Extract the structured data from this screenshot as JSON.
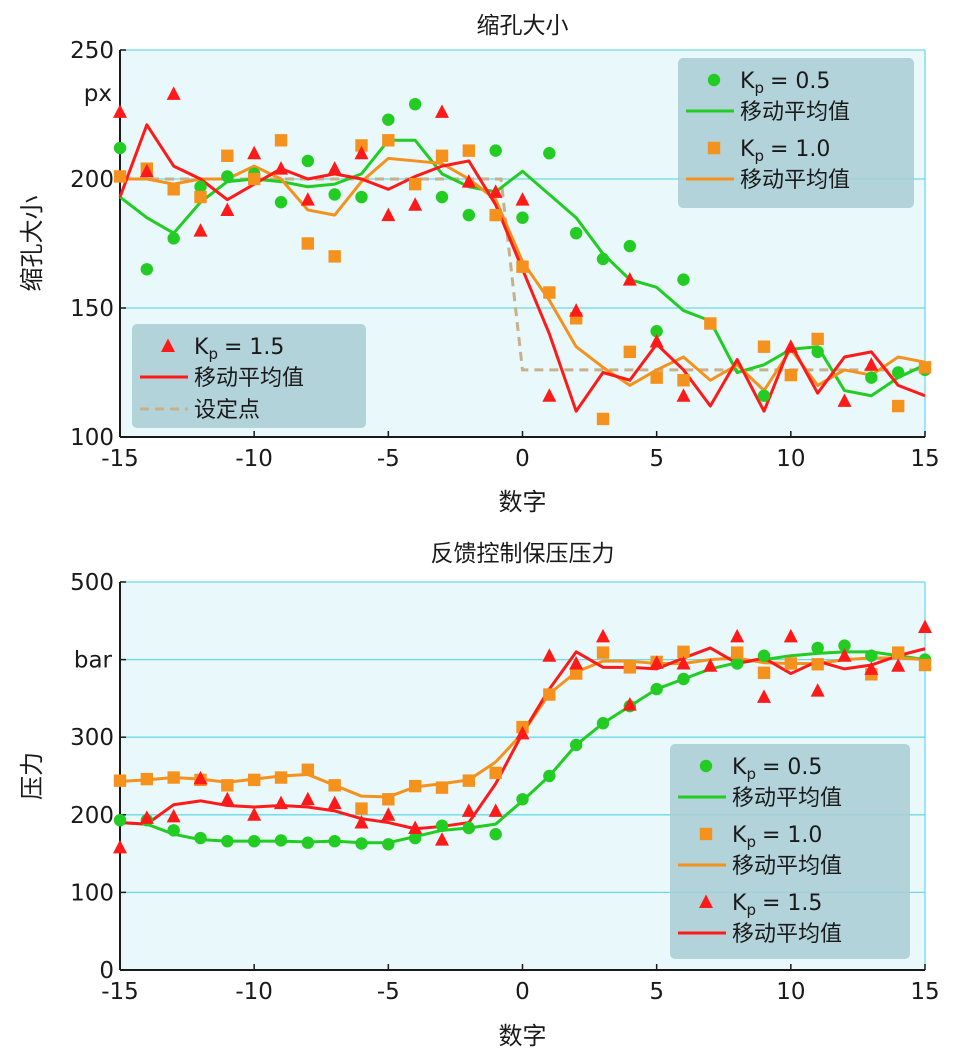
{
  "chart_data": [
    {
      "type": "scatter",
      "title": "缩孔大小",
      "xlabel": "数字",
      "ylabel": "缩孔大小",
      "unit_label": "px",
      "xlim": [
        -15,
        15
      ],
      "ylim": [
        100,
        250
      ],
      "xticks": [
        "-15",
        "-10",
        "-5",
        "0",
        "5",
        "10",
        "15"
      ],
      "yticks": [
        "100",
        "150",
        "200",
        "250"
      ],
      "x": [
        -15,
        -14,
        -13,
        -12,
        -11,
        -10,
        -9,
        -8,
        -7,
        -6,
        -5,
        -4,
        -3,
        -2,
        -1,
        0,
        1,
        2,
        3,
        4,
        5,
        6,
        7,
        8,
        9,
        10,
        11,
        12,
        13,
        14,
        15
      ],
      "series": [
        {
          "name": "Kp = 0.5",
          "legend_label": "K",
          "legend_sub": "p",
          "legend_value": "= 0.5",
          "marker": "circle",
          "color": "#22cc22",
          "points": [
            212,
            165,
            177,
            197,
            201,
            202,
            191,
            207,
            194,
            193,
            223,
            229,
            193,
            186,
            211,
            185,
            210,
            179,
            169,
            174,
            141,
            161,
            null,
            null,
            116,
            null,
            133,
            null,
            123,
            125,
            126
          ],
          "avg": [
            193,
            185,
            179,
            191,
            199,
            200,
            199,
            197,
            198,
            202,
            215,
            215,
            202,
            197,
            195,
            203,
            194,
            185,
            171,
            161,
            158,
            149,
            145,
            125,
            128,
            134,
            135,
            118,
            116,
            123,
            128
          ]
        },
        {
          "name": "Kp = 1.0",
          "legend_label": "K",
          "legend_sub": "p",
          "legend_value": "= 1.0",
          "marker": "square",
          "color": "#f5921e",
          "points": [
            201,
            204,
            196,
            193,
            209,
            200,
            215,
            175,
            170,
            213,
            215,
            198,
            209,
            211,
            186,
            166,
            156,
            146,
            107,
            133,
            123,
            122,
            144,
            null,
            135,
            124,
            138,
            null,
            null,
            112,
            127
          ],
          "avg": [
            200,
            200,
            198,
            200,
            200,
            205,
            200,
            188,
            186,
            199,
            208,
            207,
            206,
            200,
            192,
            168,
            153,
            135,
            127,
            120,
            126,
            131,
            122,
            128,
            118,
            134,
            120,
            126,
            124,
            131,
            129
          ]
        },
        {
          "name": "Kp = 1.5",
          "legend_label": "K",
          "legend_sub": "p",
          "legend_value": "= 1.5",
          "marker": "triangle",
          "color": "#ff1a1a",
          "points": [
            226,
            203,
            233,
            180,
            188,
            210,
            204,
            192,
            204,
            210,
            186,
            190,
            226,
            199,
            195,
            192,
            116,
            149,
            null,
            161,
            137,
            116,
            null,
            null,
            null,
            135,
            null,
            114,
            128,
            null,
            null
          ],
          "avg": [
            193,
            221,
            205,
            200,
            192,
            198,
            204,
            200,
            202,
            200,
            196,
            201,
            205,
            207,
            190,
            165,
            140,
            110,
            125,
            122,
            136,
            126,
            112,
            130,
            110,
            136,
            117,
            131,
            133,
            120,
            116
          ]
        }
      ],
      "setpoint": {
        "name": "设定点",
        "color": "#c8b08a",
        "x": [
          -15,
          -0.8,
          0,
          15
        ],
        "y": [
          200,
          200,
          126,
          126
        ]
      },
      "legend_line_label": "移动平均值"
    },
    {
      "type": "scatter",
      "title": "反馈控制保压压力",
      "xlabel": "数字",
      "ylabel": "压力",
      "unit_label": "bar",
      "xlim": [
        -15,
        15
      ],
      "ylim": [
        0,
        500
      ],
      "xticks": [
        "-15",
        "-10",
        "-5",
        "0",
        "5",
        "10",
        "15"
      ],
      "yticks": [
        "0",
        "100",
        "200",
        "300",
        "500"
      ],
      "x": [
        -15,
        -14,
        -13,
        -12,
        -11,
        -10,
        -9,
        -8,
        -7,
        -6,
        -5,
        -4,
        -3,
        -2,
        -1,
        0,
        1,
        2,
        3,
        4,
        5,
        6,
        7,
        8,
        9,
        10,
        11,
        12,
        13,
        14,
        15
      ],
      "series": [
        {
          "name": "Kp = 0.5",
          "legend_label": "K",
          "legend_sub": "p",
          "legend_value": "= 0.5",
          "marker": "circle",
          "color": "#22cc22",
          "points": [
            193,
            193,
            180,
            170,
            166,
            166,
            167,
            164,
            166,
            163,
            162,
            170,
            186,
            183,
            175,
            220,
            250,
            290,
            318,
            340,
            362,
            375,
            null,
            395,
            405,
            null,
            415,
            418,
            405,
            null,
            400
          ],
          "avg": [
            190,
            188,
            175,
            168,
            166,
            166,
            166,
            165,
            166,
            164,
            164,
            172,
            180,
            183,
            188,
            218,
            250,
            290,
            318,
            340,
            362,
            375,
            388,
            396,
            400,
            405,
            408,
            410,
            410,
            405,
            400
          ]
        },
        {
          "name": "Kp = 1.0",
          "legend_label": "K",
          "legend_sub": "p",
          "legend_value": "= 1.0",
          "marker": "square",
          "color": "#f5921e",
          "points": [
            244,
            246,
            248,
            245,
            238,
            245,
            248,
            258,
            238,
            208,
            220,
            237,
            235,
            244,
            254,
            313,
            355,
            382,
            409,
            390,
            397,
            410,
            null,
            409,
            383,
            395,
            394,
            null,
            381,
            409,
            393
          ],
          "avg": [
            243,
            245,
            248,
            246,
            242,
            246,
            250,
            252,
            238,
            224,
            223,
            236,
            240,
            245,
            268,
            305,
            356,
            384,
            398,
            398,
            395,
            395,
            400,
            402,
            396,
            395,
            395,
            400,
            402,
            402,
            400
          ]
        },
        {
          "name": "Kp = 1.5",
          "legend_label": "K",
          "legend_sub": "p",
          "legend_value": "= 1.5",
          "marker": "triangle",
          "color": "#ff1a1a",
          "points": [
            158,
            196,
            198,
            247,
            220,
            200,
            215,
            220,
            215,
            190,
            200,
            183,
            168,
            205,
            205,
            305,
            405,
            395,
            430,
            342,
            396,
            395,
            392,
            430,
            352,
            430,
            360,
            405,
            388,
            392,
            442
          ],
          "avg": [
            190,
            188,
            213,
            218,
            212,
            210,
            212,
            210,
            205,
            195,
            190,
            182,
            185,
            190,
            240,
            305,
            362,
            410,
            390,
            390,
            388,
            402,
            415,
            395,
            402,
            382,
            398,
            388,
            393,
            405,
            414
          ]
        }
      ],
      "legend_line_label": "移动平均值"
    }
  ]
}
